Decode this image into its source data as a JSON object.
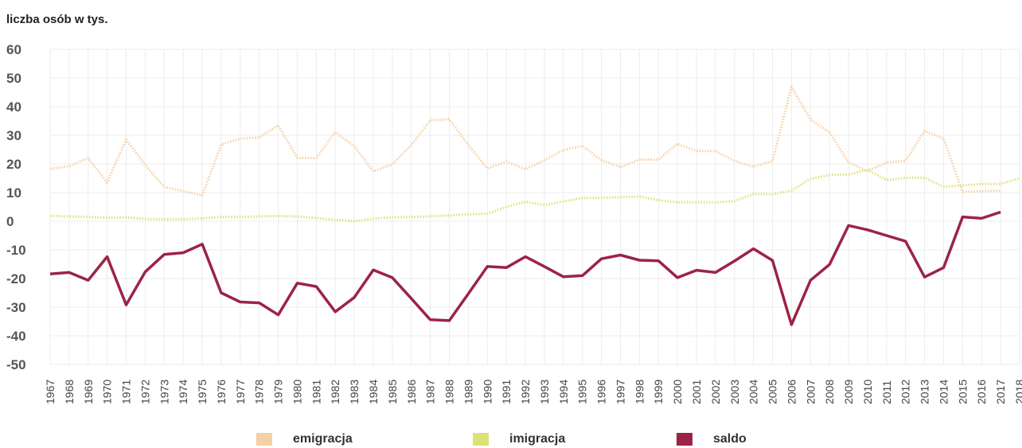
{
  "unit_label": "liczba osób w tys.",
  "chart_data": {
    "type": "line",
    "ylim": [
      -50,
      60
    ],
    "yticks": [
      60,
      50,
      40,
      30,
      20,
      10,
      0,
      -10,
      -20,
      -30,
      -40,
      -50
    ],
    "x": [
      "1967",
      "1968",
      "1969",
      "1970",
      "1971",
      "1972",
      "1973",
      "1974",
      "1975",
      "1976",
      "1977",
      "1978",
      "1979",
      "1980",
      "1981",
      "1982",
      "1983",
      "1984",
      "1985",
      "1986",
      "1987",
      "1988",
      "1989",
      "1990",
      "1991",
      "1992",
      "1993",
      "1994",
      "1995",
      "1996",
      "1997",
      "1998",
      "1999",
      "2000",
      "2001",
      "2002",
      "2003",
      "2004",
      "2005",
      "2006",
      "2007",
      "2008",
      "2009",
      "2010",
      "2011",
      "2012",
      "2013",
      "2014",
      "2015",
      "2016",
      "2017",
      "2018"
    ],
    "grid": true,
    "legend_position": "bottom",
    "series": [
      {
        "name": "emigracja",
        "color": "#f5cfa5",
        "style": "dotted",
        "values": [
          18.3,
          19.2,
          22.0,
          13.5,
          28.5,
          19.6,
          12.0,
          10.5,
          9.0,
          26.8,
          28.8,
          29.2,
          33.5,
          22.1,
          22.0,
          31.1,
          26.2,
          17.4,
          19.9,
          26.6,
          35.2,
          35.6,
          26.6,
          18.4,
          20.9,
          18.1,
          21.3,
          24.8,
          26.3,
          21.3,
          18.9,
          21.5,
          21.5,
          27.0,
          24.5,
          24.5,
          21.0,
          19.0,
          21.0,
          46.9,
          35.5,
          31.0,
          20.5,
          17.5,
          20.5,
          21.1,
          31.5,
          28.8,
          10.2,
          10.5,
          10.6,
          null
        ]
      },
      {
        "name": "imigracja",
        "color": "#dde276",
        "style": "dotted",
        "values": [
          1.9,
          1.7,
          1.5,
          1.2,
          1.3,
          0.8,
          0.7,
          0.7,
          1.0,
          1.5,
          1.5,
          1.7,
          1.8,
          1.7,
          1.1,
          0.5,
          0.0,
          0.9,
          1.4,
          1.5,
          1.7,
          2.0,
          2.4,
          2.6,
          5.0,
          6.8,
          5.6,
          6.9,
          8.1,
          8.2,
          8.4,
          8.6,
          7.3,
          6.6,
          6.6,
          6.6,
          7.0,
          9.5,
          9.4,
          10.7,
          14.8,
          16.1,
          16.3,
          18.0,
          14.4,
          15.1,
          15.2,
          12.0,
          12.5,
          13.0,
          13.0,
          15.0
        ]
      },
      {
        "name": "saldo",
        "color": "#9b2446",
        "style": "solid",
        "values": [
          -18.4,
          -17.9,
          -20.6,
          -12.4,
          -29.2,
          -17.7,
          -11.6,
          -11.0,
          -8.0,
          -25.0,
          -28.2,
          -28.5,
          -32.7,
          -21.6,
          -22.8,
          -31.6,
          -26.6,
          -17.0,
          -19.7,
          -27.0,
          -34.4,
          -34.7,
          -25.3,
          -15.8,
          -16.2,
          -12.4,
          -15.8,
          -19.4,
          -19.0,
          -13.1,
          -11.8,
          -13.6,
          -13.8,
          -19.7,
          -17.1,
          -17.9,
          -13.9,
          -9.6,
          -13.7,
          -36.1,
          -20.6,
          -15.1,
          -1.5,
          -3.0,
          -5.0,
          -7.0,
          -19.5,
          -16.2,
          1.5,
          1.0,
          3.2,
          null
        ]
      }
    ]
  }
}
